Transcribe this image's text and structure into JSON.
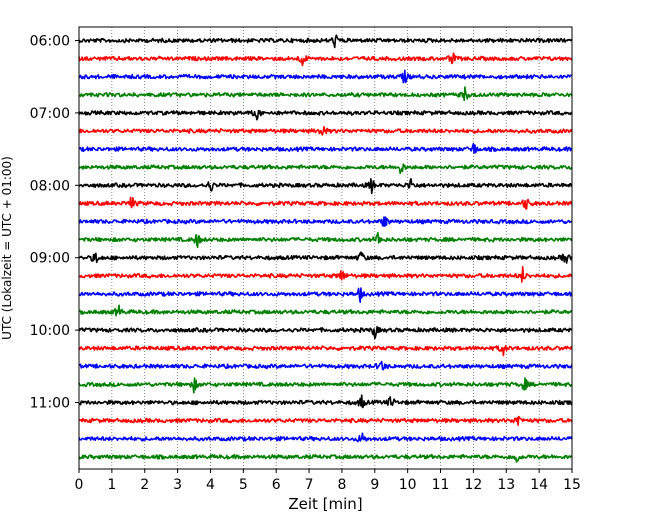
{
  "chart_data": {
    "type": "line",
    "title": "",
    "xlabel": "Zeit  [min]",
    "ylabel": "UTC (Lokalzeit = UTC + 01:00)",
    "xlim": [
      0,
      15
    ],
    "xticks": [
      0,
      1,
      2,
      3,
      4,
      5,
      6,
      7,
      8,
      9,
      10,
      11,
      12,
      13,
      14,
      15
    ],
    "xtick_labels": [
      "0",
      "1",
      "2",
      "3",
      "4",
      "5",
      "6",
      "7",
      "8",
      "9",
      "10",
      "11",
      "12",
      "13",
      "14",
      "15"
    ],
    "ytick_labels": [
      "06:00",
      "07:00",
      "08:00",
      "09:00",
      "10:00",
      "11:00"
    ],
    "ytick_rows": [
      0,
      4,
      8,
      12,
      16,
      20
    ],
    "grid": "vertical dotted at each minute",
    "trace_colors": [
      "#000000",
      "#ff0000",
      "#0000ff",
      "#008000"
    ],
    "traces": [
      {
        "row": 0,
        "start": "06:00",
        "color": "#000000",
        "events": [
          7.8
        ]
      },
      {
        "row": 1,
        "start": "06:15",
        "color": "#ff0000",
        "events": [
          6.8,
          11.35
        ]
      },
      {
        "row": 2,
        "start": "06:30",
        "color": "#0000ff",
        "events": [
          9.9
        ]
      },
      {
        "row": 3,
        "start": "06:45",
        "color": "#008000",
        "events": [
          11.75
        ]
      },
      {
        "row": 4,
        "start": "07:00",
        "color": "#000000",
        "events": [
          5.4
        ]
      },
      {
        "row": 5,
        "start": "07:15",
        "color": "#ff0000",
        "events": [
          7.4
        ]
      },
      {
        "row": 6,
        "start": "07:30",
        "color": "#0000ff",
        "events": [
          12.0
        ]
      },
      {
        "row": 7,
        "start": "07:45",
        "color": "#008000",
        "events": [
          9.8
        ]
      },
      {
        "row": 8,
        "start": "08:00",
        "color": "#000000",
        "events": [
          4.0,
          8.9,
          10.1
        ]
      },
      {
        "row": 9,
        "start": "08:15",
        "color": "#ff0000",
        "events": [
          1.6,
          13.6
        ]
      },
      {
        "row": 10,
        "start": "08:30",
        "color": "#0000ff",
        "events": [
          9.3
        ]
      },
      {
        "row": 11,
        "start": "08:45",
        "color": "#008000",
        "events": [
          3.6,
          9.1
        ]
      },
      {
        "row": 12,
        "start": "09:00",
        "color": "#000000",
        "events": [
          0.5,
          8.6,
          14.8
        ]
      },
      {
        "row": 13,
        "start": "09:15",
        "color": "#ff0000",
        "events": [
          8.0,
          13.5
        ]
      },
      {
        "row": 14,
        "start": "09:30",
        "color": "#0000ff",
        "events": [
          8.55
        ]
      },
      {
        "row": 15,
        "start": "09:45",
        "color": "#008000",
        "events": [
          1.2
        ]
      },
      {
        "row": 16,
        "start": "10:00",
        "color": "#000000",
        "events": [
          9.0
        ]
      },
      {
        "row": 17,
        "start": "10:15",
        "color": "#ff0000",
        "events": [
          12.9
        ]
      },
      {
        "row": 18,
        "start": "10:30",
        "color": "#0000ff",
        "events": [
          9.2
        ]
      },
      {
        "row": 19,
        "start": "10:45",
        "color": "#008000",
        "events": [
          3.5,
          13.55
        ]
      },
      {
        "row": 20,
        "start": "11:00",
        "color": "#000000",
        "events": [
          8.6,
          9.5
        ]
      },
      {
        "row": 21,
        "start": "11:15",
        "color": "#ff0000",
        "events": [
          13.35
        ]
      },
      {
        "row": 22,
        "start": "11:30",
        "color": "#0000ff",
        "events": [
          8.6
        ]
      },
      {
        "row": 23,
        "start": "11:45",
        "color": "#008000",
        "events": [
          13.3
        ]
      }
    ]
  }
}
